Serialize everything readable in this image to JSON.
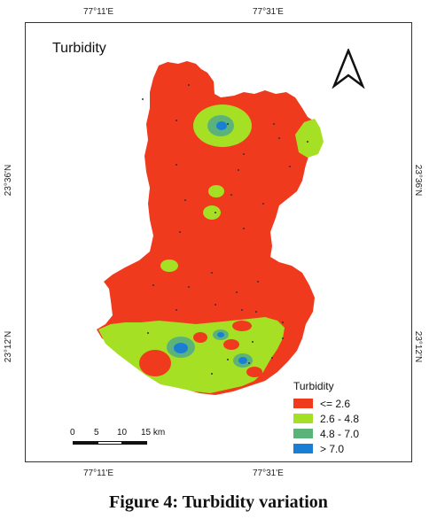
{
  "map": {
    "title": "Turbidity",
    "caption": "Figure 4: Turbidity variation",
    "coords": {
      "top_left": "77°11'E",
      "top_right": "77°31'E",
      "bottom_left": "77°11'E",
      "bottom_right": "77°31'E",
      "left_upper": "23°36'N",
      "left_lower": "23°12'N",
      "right_upper": "23°36'N",
      "right_lower": "23°12'N"
    },
    "legend": {
      "title": "Turbidity",
      "items": [
        {
          "label": "<= 2.6",
          "color": "#f03a1e"
        },
        {
          "label": "2.6 - 4.8",
          "color": "#a6e024"
        },
        {
          "label": "4.8 - 7.0",
          "color": "#5bb37a"
        },
        {
          "label": "> 7.0",
          "color": "#1a7fd4"
        }
      ]
    },
    "scale": {
      "ticks": [
        "0",
        "5",
        "10",
        "15 km"
      ]
    },
    "north_arrow": "north-arrow-icon"
  }
}
